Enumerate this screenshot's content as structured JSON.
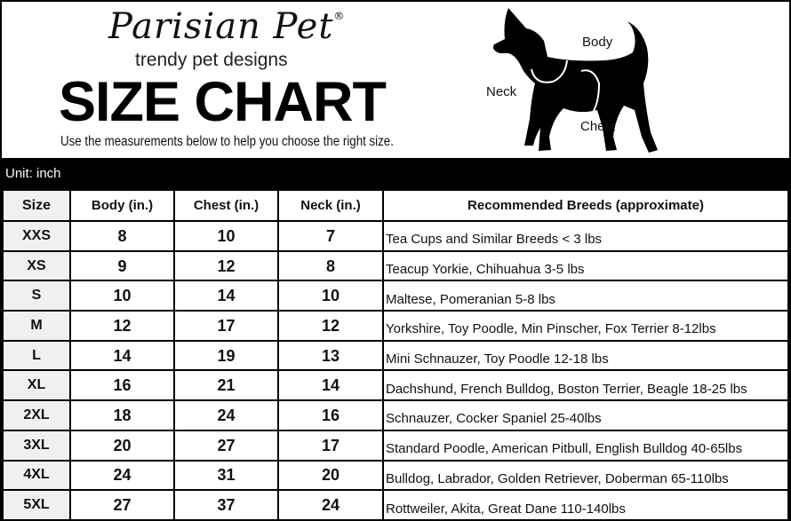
{
  "header": {
    "brand": "Parisian Pet",
    "brand_mark": "®",
    "tagline": "trendy pet designs",
    "title": "SIZE CHART",
    "subtitle": "Use the measurements below to help you choose the right size.",
    "diagram_labels": {
      "body": "Body",
      "neck": "Neck",
      "chest": "Chest"
    }
  },
  "unit_label": "Unit: inch",
  "table": {
    "columns": [
      "Size",
      "Body (in.)",
      "Chest (in.)",
      "Neck (in.)",
      "Recommended Breeds (approximate)"
    ],
    "rows": [
      [
        "XXS",
        "8",
        "10",
        "7",
        "Tea Cups and Similar Breeds < 3 lbs"
      ],
      [
        "XS",
        "9",
        "12",
        "8",
        "Teacup Yorkie, Chihuahua 3-5 lbs"
      ],
      [
        "S",
        "10",
        "14",
        "10",
        "Maltese, Pomeranian 5-8 lbs"
      ],
      [
        "M",
        "12",
        "17",
        "12",
        "Yorkshire, Toy Poodle, Min Pinscher, Fox Terrier 8-12lbs"
      ],
      [
        "L",
        "14",
        "19",
        "13",
        "Mini Schnauzer, Toy Poodle 12-18 lbs"
      ],
      [
        "XL",
        "16",
        "21",
        "14",
        "Dachshund, French Bulldog, Boston Terrier, Beagle 18-25 lbs"
      ],
      [
        "2XL",
        "18",
        "24",
        "16",
        "Schnauzer, Cocker Spaniel 25-40lbs"
      ],
      [
        "3XL",
        "20",
        "27",
        "17",
        "Standard Poodle, American Pitbull, English Bulldog 40-65lbs"
      ],
      [
        "4XL",
        "24",
        "31",
        "20",
        "Bulldog, Labrador, Golden Retriever, Doberman 65-110lbs"
      ],
      [
        "5XL",
        "27",
        "37",
        "24",
        "Rottweiler, Akita, Great Dane 110-140lbs"
      ]
    ]
  }
}
